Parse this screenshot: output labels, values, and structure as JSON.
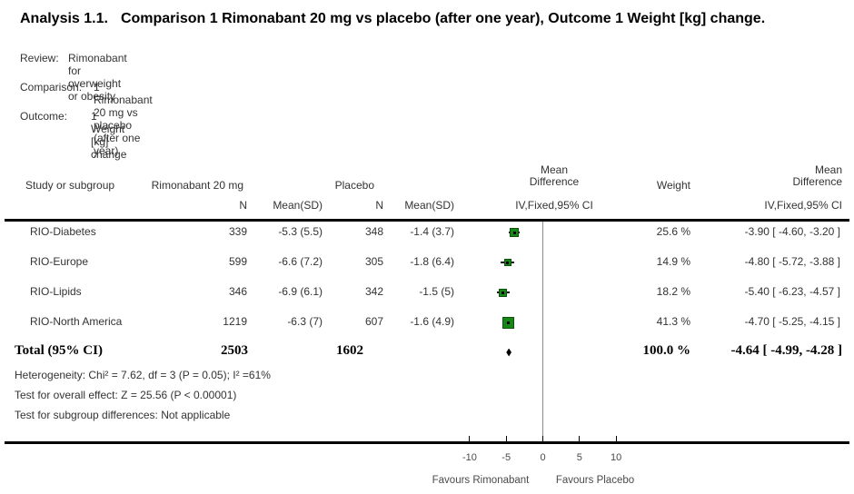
{
  "title": {
    "label": "Analysis 1.1.",
    "text": "Comparison 1 Rimonabant 20 mg vs placebo (after one year), Outcome 1 Weight [kg] change."
  },
  "meta": {
    "review_label": "Review:",
    "review": "Rimonabant for overweight or obesity",
    "comparison_label": "Comparison:",
    "comparison": "1 Rimonabant 20 mg vs placebo (after one year)",
    "outcome_label": "Outcome:",
    "outcome": "1 Weight [kg] change"
  },
  "table": {
    "headers": {
      "study": "Study or subgroup",
      "group1": "Rimonabant 20 mg",
      "group2": "Placebo",
      "effect_line1": "Mean",
      "effect_line2": "Difference",
      "weight": "Weight",
      "n": "N",
      "mean_sd": "Mean(SD)",
      "ci_method": "IV,Fixed,95% CI"
    },
    "rows": [
      {
        "study": "RIO-Diabetes",
        "n1": "339",
        "mean_sd1": "-5.3 (5.5)",
        "n2": "348",
        "mean_sd2": "-1.4 (3.7)",
        "weight": "25.6 %",
        "md_ci": "-3.90 [ -4.60, -3.20 ]"
      },
      {
        "study": "RIO-Europe",
        "n1": "599",
        "mean_sd1": "-6.6 (7.2)",
        "n2": "305",
        "mean_sd2": "-1.8 (6.4)",
        "weight": "14.9 %",
        "md_ci": "-4.80 [ -5.72, -3.88 ]"
      },
      {
        "study": "RIO-Lipids",
        "n1": "346",
        "mean_sd1": "-6.9 (6.1)",
        "n2": "342",
        "mean_sd2": "-1.5 (5)",
        "weight": "18.2 %",
        "md_ci": "-5.40 [ -6.23, -4.57 ]"
      },
      {
        "study": "RIO-North America",
        "n1": "1219",
        "mean_sd1": "-6.3 (7)",
        "n2": "607",
        "mean_sd2": "-1.6 (4.9)",
        "weight": "41.3 %",
        "md_ci": "-4.70 [ -5.25, -4.15 ]"
      }
    ],
    "total": {
      "label": "Total (95% CI)",
      "n1": "2503",
      "n2": "1602",
      "weight": "100.0 %",
      "md_ci": "-4.64 [ -4.99, -4.28 ]"
    },
    "footnotes": [
      "Heterogeneity: Chi² = 7.62, df = 3 (P = 0.05); I² =61%",
      "Test for overall effect: Z = 25.56 (P < 0.00001)",
      "Test for subgroup differences: Not applicable"
    ]
  },
  "chart_data": {
    "type": "forest",
    "effect_measure": "Mean Difference, IV, Fixed, 95% CI",
    "marker_color": "#168716",
    "x_axis": {
      "ticks": [
        -10,
        -5,
        0,
        5,
        10
      ],
      "range": [
        -14,
        14
      ],
      "favours_left": "Favours Rimonabant",
      "favours_right": "Favours Placebo"
    },
    "studies": [
      {
        "name": "RIO-Diabetes",
        "treatment_n": 339,
        "treatment_mean_sd": "-5.3 (5.5)",
        "control_n": 348,
        "control_mean_sd": "-1.4 (3.7)",
        "weight_pct": 25.6,
        "md": -3.9,
        "ci_low": -4.6,
        "ci_high": -3.2
      },
      {
        "name": "RIO-Europe",
        "treatment_n": 599,
        "treatment_mean_sd": "-6.6 (7.2)",
        "control_n": 305,
        "control_mean_sd": "-1.8 (6.4)",
        "weight_pct": 14.9,
        "md": -4.8,
        "ci_low": -5.72,
        "ci_high": -3.88
      },
      {
        "name": "RIO-Lipids",
        "treatment_n": 346,
        "treatment_mean_sd": "-6.9 (6.1)",
        "control_n": 342,
        "control_mean_sd": "-1.5 (5)",
        "weight_pct": 18.2,
        "md": -5.4,
        "ci_low": -6.23,
        "ci_high": -4.57
      },
      {
        "name": "RIO-North America",
        "treatment_n": 1219,
        "treatment_mean_sd": "-6.3 (7)",
        "control_n": 607,
        "control_mean_sd": "-1.6 (4.9)",
        "weight_pct": 41.3,
        "md": -4.7,
        "ci_low": -5.25,
        "ci_high": -4.15
      }
    ],
    "total": {
      "label": "Total (95% CI)",
      "treatment_n": 2503,
      "control_n": 1602,
      "weight_pct": 100.0,
      "md": -4.64,
      "ci_low": -4.99,
      "ci_high": -4.28
    }
  }
}
